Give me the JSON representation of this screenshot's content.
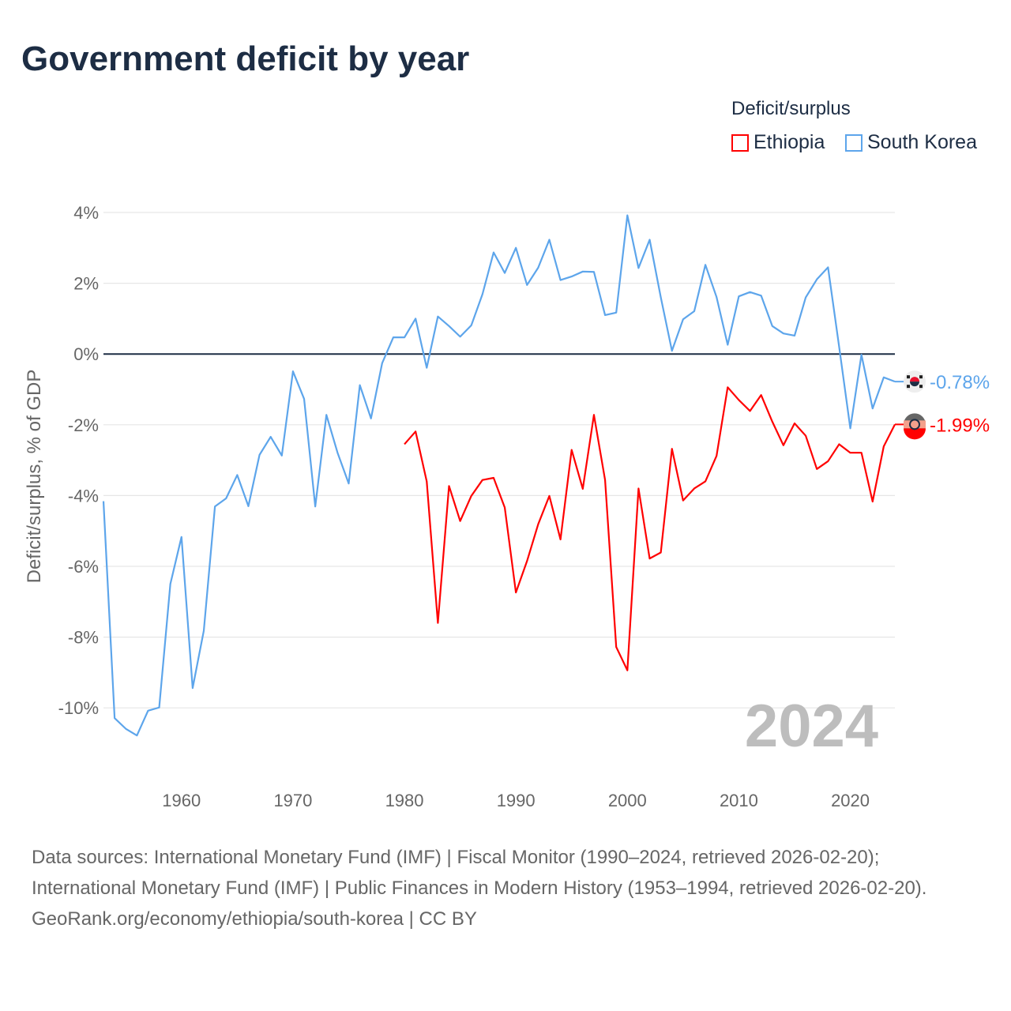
{
  "chart_data": {
    "type": "line",
    "title": "Government deficit by year",
    "ylabel": "Deficit/surplus, % of GDP",
    "xlabel": "",
    "ylim": [
      -11.5,
      4.2
    ],
    "xlim": [
      1953,
      2024
    ],
    "yticks": [
      4,
      2,
      0,
      -2,
      -4,
      -6,
      -8,
      -10
    ],
    "ytick_labels": [
      "4%",
      "2%",
      "0%",
      "-2%",
      "-4%",
      "-6%",
      "-8%",
      "-10%"
    ],
    "xticks": [
      1960,
      1970,
      1980,
      1990,
      2000,
      2010,
      2020
    ],
    "xtick_labels": [
      "1960",
      "1970",
      "1980",
      "1990",
      "2000",
      "2010",
      "2020"
    ],
    "grid": true,
    "legend_title": "Deficit/surplus",
    "legend_position": "top-right",
    "year_watermark": "2024",
    "series": [
      {
        "name": "Ethiopia",
        "color": "#ff0000",
        "start_year": 1980,
        "end_label": "-1.99%",
        "values": [
          -2.55,
          -2.19,
          -3.6,
          -7.6,
          -3.73,
          -4.72,
          -4.01,
          -3.56,
          -3.5,
          -4.34,
          -6.74,
          -5.85,
          -4.81,
          -4.01,
          -5.24,
          -2.71,
          -3.81,
          -1.72,
          -3.56,
          -8.28,
          -8.94,
          -3.8,
          -5.78,
          -5.61,
          -2.68,
          -4.14,
          -3.8,
          -3.6,
          -2.88,
          -0.94,
          -1.3,
          -1.61,
          -1.16,
          -1.91,
          -2.58,
          -1.96,
          -2.31,
          -3.25,
          -3.03,
          -2.55,
          -2.79,
          -2.79,
          -4.17,
          -2.61,
          -1.99
        ]
      },
      {
        "name": "South Korea",
        "color": "#5da5eb",
        "start_year": 1953,
        "end_label": "-0.78%",
        "values": [
          -4.16,
          -10.29,
          -10.59,
          -10.78,
          -10.08,
          -9.99,
          -6.5,
          -5.17,
          -9.44,
          -7.82,
          -4.31,
          -4.08,
          -3.42,
          -4.3,
          -2.85,
          -2.34,
          -2.87,
          -0.49,
          -1.27,
          -4.31,
          -1.72,
          -2.79,
          -3.66,
          -0.88,
          -1.82,
          -0.26,
          0.47,
          0.47,
          1.0,
          -0.39,
          1.06,
          0.79,
          0.49,
          0.81,
          1.69,
          2.87,
          2.29,
          3.0,
          1.95,
          2.44,
          3.23,
          2.09,
          2.19,
          2.33,
          2.32,
          1.1,
          1.17,
          3.92,
          2.43,
          3.23,
          1.6,
          0.09,
          0.98,
          1.21,
          2.52,
          1.61,
          0.26,
          1.63,
          1.75,
          1.65,
          0.79,
          0.58,
          0.52,
          1.6,
          2.11,
          2.45,
          0.2,
          -2.1,
          -0.02,
          -1.54,
          -0.66,
          -0.78
        ]
      }
    ]
  },
  "footer": {
    "sources": "Data sources: International Monetary Fund (IMF) | Fiscal Monitor (1990–2024, retrieved 2026-02-20); International Monetary Fund (IMF) | Public Finances in Modern History (1953–1994, retrieved 2026-02-20).",
    "attribution": "GeoRank.org/economy/ethiopia/south-korea | CC BY"
  }
}
